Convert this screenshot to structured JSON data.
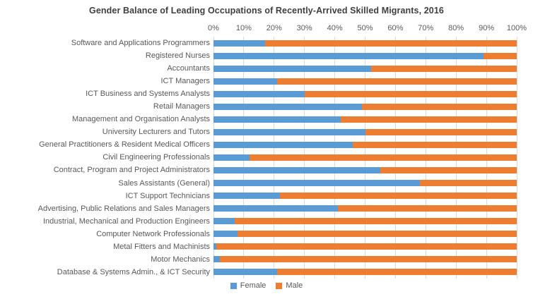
{
  "title": "Gender Balance of Leading Occupations of Recently-Arrived Skilled Migrants, 2016",
  "colors": {
    "female": "#5B9BD5",
    "male": "#ED7D31",
    "gridline": "#D9D9D9",
    "axis_text": "#595959",
    "title_text": "#3F3F3F",
    "background": "#FFFFFF"
  },
  "legend": [
    {
      "label": "Female",
      "color": "#5B9BD5"
    },
    {
      "label": "Male",
      "color": "#ED7D31"
    }
  ],
  "chart_data": {
    "type": "bar",
    "orientation": "horizontal",
    "stacked": true,
    "grid": true,
    "legend_position": "bottom",
    "title": "Gender Balance of Leading Occupations of Recently-Arrived Skilled Migrants, 2016",
    "xlabel": "",
    "ylabel": "",
    "xlim": [
      0,
      100
    ],
    "x_tick_interval": 10,
    "x_ticks": [
      "0%",
      "10%",
      "20%",
      "30%",
      "40%",
      "50%",
      "60%",
      "70%",
      "80%",
      "90%",
      "100%"
    ],
    "categories": [
      "Software and Applications Programmers",
      "Registered Nurses",
      "Accountants",
      "ICT Managers",
      "ICT Business and Systems Analysts",
      "Retail Managers",
      "Management and Organisation Analysts",
      "University Lecturers and Tutors",
      "General Practitioners & Resident Medical Officers",
      "Civil Engineering Professionals",
      "Contract, Program and Project Administrators",
      "Sales Assistants (General)",
      "ICT Support Technicians",
      "Advertising, Public Relations and Sales Managers",
      "Industrial, Mechanical and Production Engineers",
      "Computer Network Professionals",
      "Metal Fitters and Machinists",
      "Motor Mechanics",
      "Database & Systems Admin., & ICT Security"
    ],
    "series": [
      {
        "name": "Female",
        "color": "#5B9BD5",
        "values": [
          17,
          89,
          52,
          21,
          30,
          49,
          42,
          50,
          46,
          12,
          55,
          68,
          22,
          41,
          7,
          8,
          1,
          2,
          21
        ]
      },
      {
        "name": "Male",
        "color": "#ED7D31",
        "values": [
          83,
          11,
          48,
          79,
          70,
          51,
          58,
          50,
          54,
          88,
          45,
          32,
          78,
          59,
          93,
          92,
          99,
          98,
          79
        ]
      }
    ]
  }
}
